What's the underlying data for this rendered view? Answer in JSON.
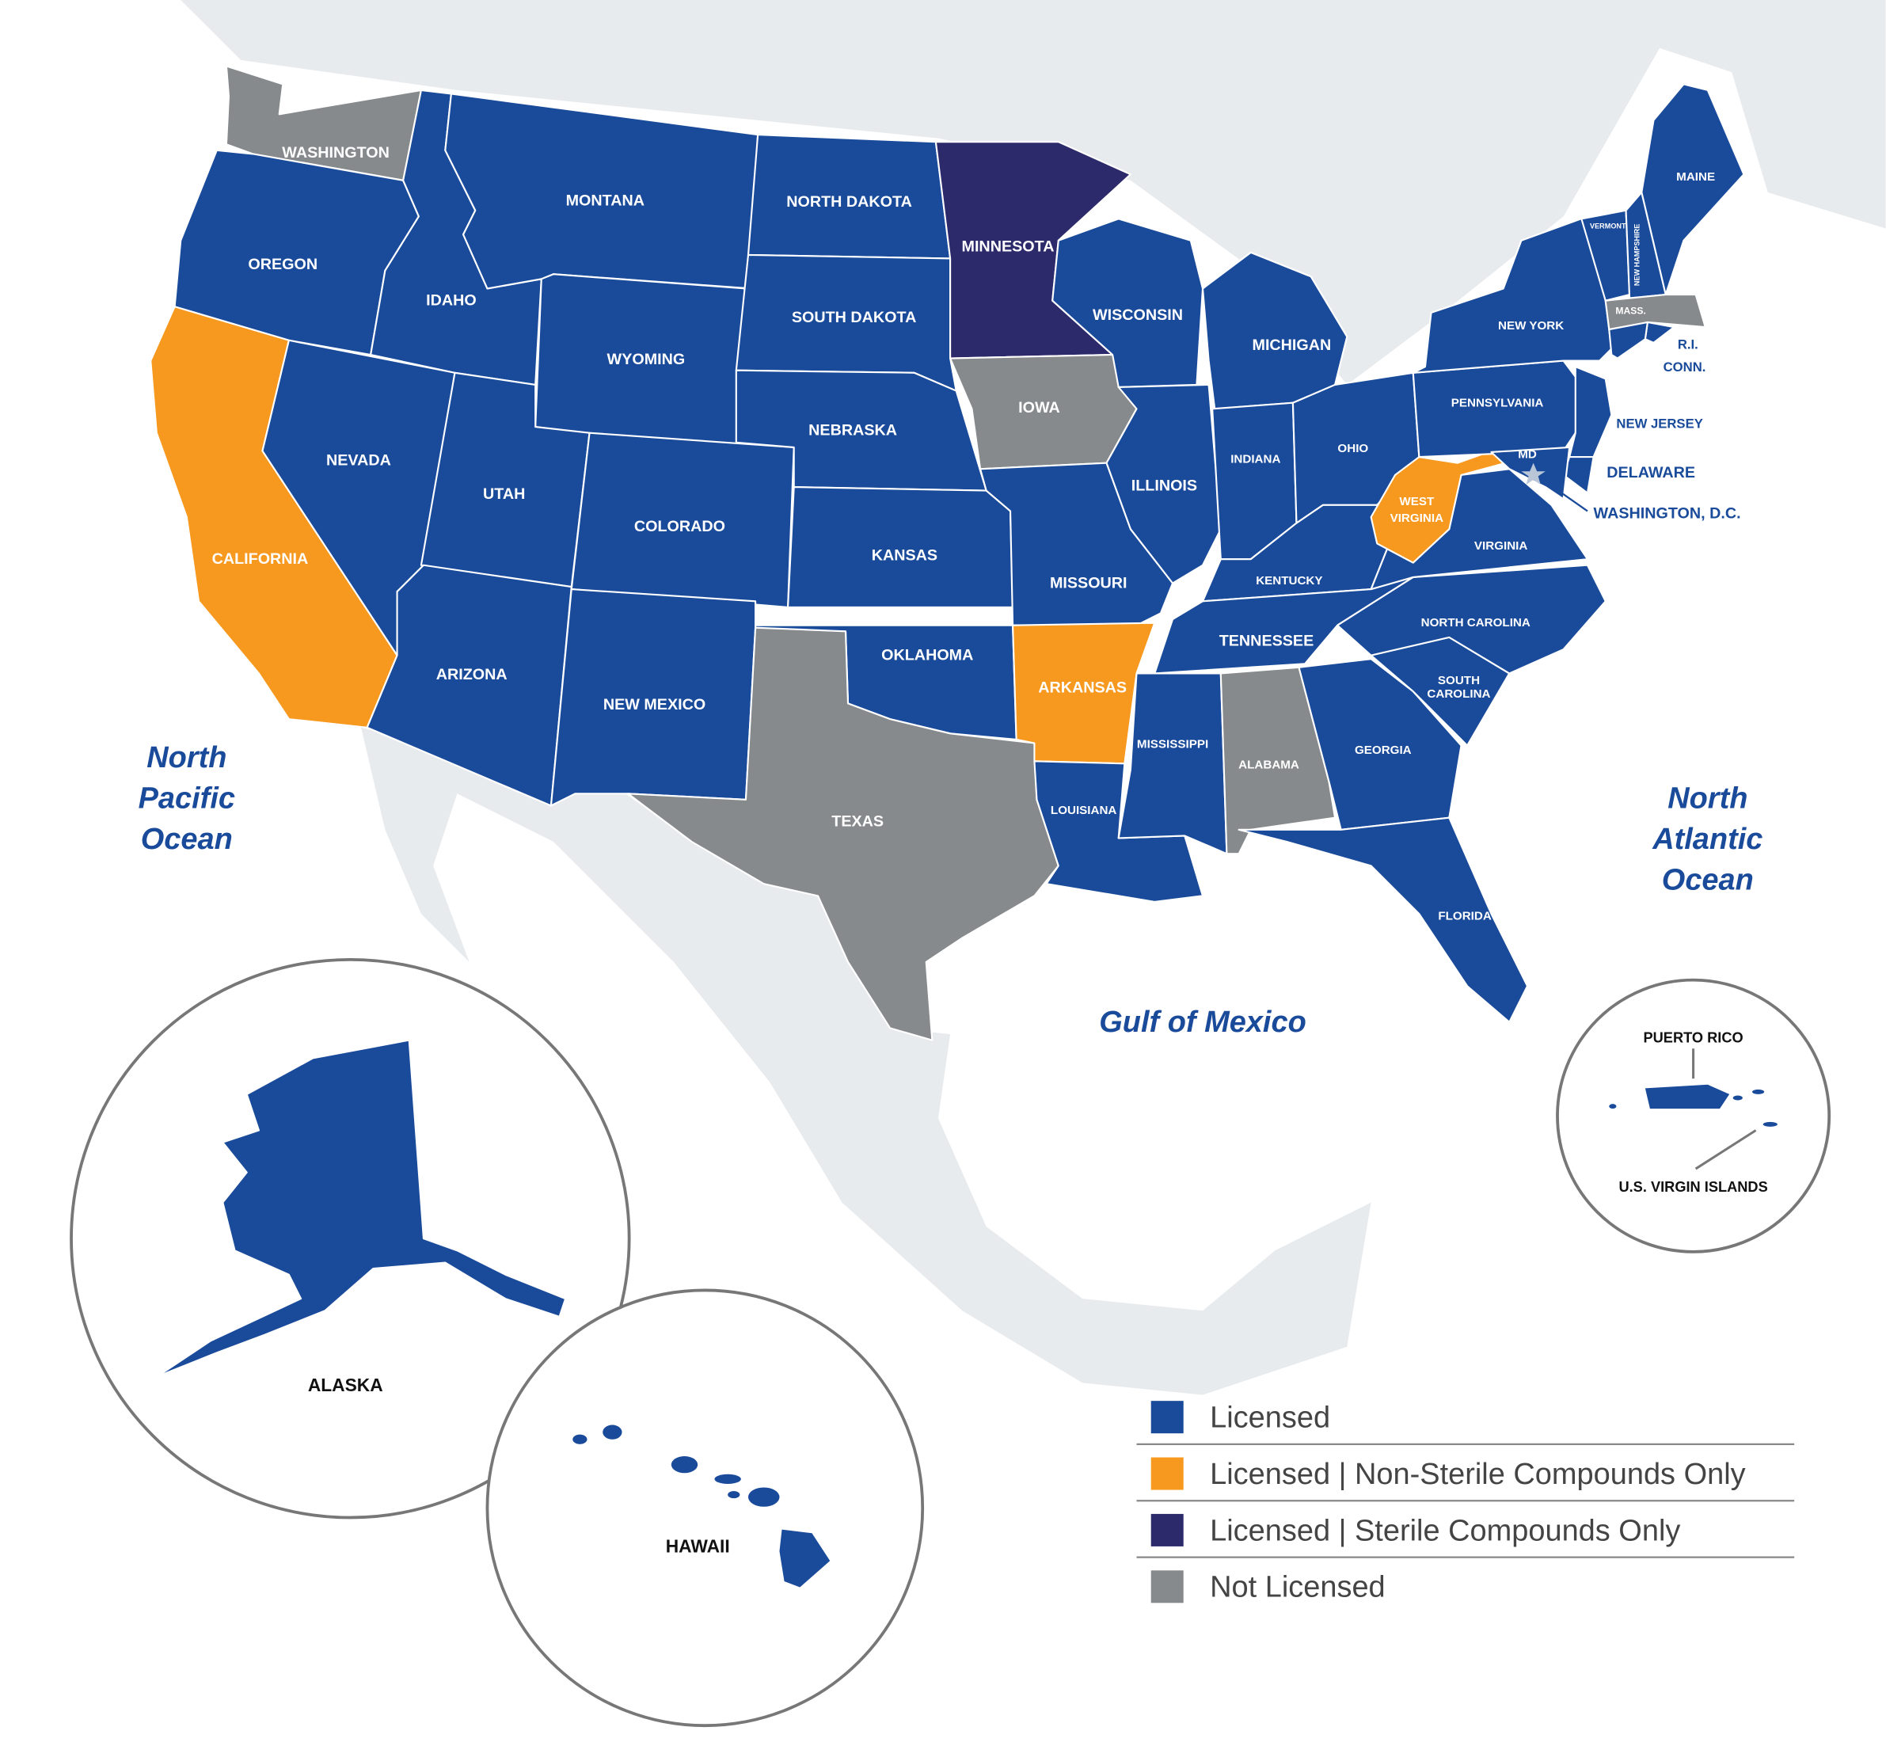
{
  "colors": {
    "licensed": "#1a4b9b",
    "non_sterile": "#f7981f",
    "sterile": "#2d2a6b",
    "not_licensed": "#868a8c"
  },
  "oceans": {
    "pacific": [
      "North",
      "Pacific",
      "Ocean"
    ],
    "atlantic": [
      "North",
      "Atlantic",
      "Ocean"
    ],
    "gulf": "Gulf of Mexico"
  },
  "states": [
    {
      "label": "WASHINGTON",
      "status": "not_licensed"
    },
    {
      "label": "OREGON",
      "status": "licensed"
    },
    {
      "label": "CALIFORNIA",
      "status": "non_sterile"
    },
    {
      "label": "NEVADA",
      "status": "licensed"
    },
    {
      "label": "IDAHO",
      "status": "licensed"
    },
    {
      "label": "MONTANA",
      "status": "licensed"
    },
    {
      "label": "WYOMING",
      "status": "licensed"
    },
    {
      "label": "UTAH",
      "status": "licensed"
    },
    {
      "label": "COLORADO",
      "status": "licensed"
    },
    {
      "label": "ARIZONA",
      "status": "licensed"
    },
    {
      "label": "NEW MEXICO",
      "status": "licensed"
    },
    {
      "label": "NORTH DAKOTA",
      "status": "licensed"
    },
    {
      "label": "SOUTH DAKOTA",
      "status": "licensed"
    },
    {
      "label": "NEBRASKA",
      "status": "licensed"
    },
    {
      "label": "KANSAS",
      "status": "licensed"
    },
    {
      "label": "OKLAHOMA",
      "status": "licensed"
    },
    {
      "label": "TEXAS",
      "status": "not_licensed"
    },
    {
      "label": "MINNESOTA",
      "status": "sterile"
    },
    {
      "label": "IOWA",
      "status": "not_licensed"
    },
    {
      "label": "MISSOURI",
      "status": "licensed"
    },
    {
      "label": "ARKANSAS",
      "status": "non_sterile"
    },
    {
      "label": "LOUISIANA",
      "status": "licensed"
    },
    {
      "label": "WISCONSIN",
      "status": "licensed"
    },
    {
      "label": "ILLINOIS",
      "status": "licensed"
    },
    {
      "label": "MICHIGAN",
      "status": "licensed"
    },
    {
      "label": "INDIANA",
      "status": "licensed"
    },
    {
      "label": "OHIO",
      "status": "licensed"
    },
    {
      "label": "KENTUCKY",
      "status": "licensed"
    },
    {
      "label": "TENNESSEE",
      "status": "licensed"
    },
    {
      "label": "MISSISSIPPI",
      "status": "licensed"
    },
    {
      "label": "ALABAMA",
      "status": "not_licensed"
    },
    {
      "label": "GEORGIA",
      "status": "licensed"
    },
    {
      "label": "FLORIDA",
      "status": "licensed"
    },
    {
      "label_lines": [
        "SOUTH",
        "CAROLINA"
      ],
      "status": "licensed"
    },
    {
      "label": "NORTH CAROLINA",
      "status": "licensed"
    },
    {
      "label": "VIRGINIA",
      "status": "licensed"
    },
    {
      "label_lines": [
        "WEST",
        "VIRGINIA"
      ],
      "status": "non_sterile"
    },
    {
      "label": "PENNSYLVANIA",
      "status": "licensed"
    },
    {
      "label": "NEW YORK",
      "status": "licensed"
    },
    {
      "label": "NEW JERSEY",
      "status": "licensed"
    },
    {
      "label": "DELAWARE",
      "status": "licensed"
    },
    {
      "label": "MD",
      "status": "licensed"
    },
    {
      "label": "WASHINGTON, D.C.",
      "status": "licensed"
    },
    {
      "label": "MAINE",
      "status": "licensed"
    },
    {
      "label": "VERMONT",
      "status": "licensed"
    },
    {
      "label": "NEW HAMPSHIRE",
      "status": "licensed"
    },
    {
      "label": "MASS.",
      "status": "not_licensed"
    },
    {
      "label": "R.I.",
      "status": "licensed"
    },
    {
      "label": "CONN.",
      "status": "licensed"
    },
    {
      "label": "ALASKA",
      "status": "licensed"
    },
    {
      "label": "HAWAII",
      "status": "licensed"
    },
    {
      "label": "PUERTO RICO",
      "status": "licensed"
    },
    {
      "label": "U.S. VIRGIN ISLANDS",
      "status": "licensed"
    }
  ],
  "legend": [
    {
      "label": "Licensed",
      "status": "licensed"
    },
    {
      "label": "Licensed | Non-Sterile Compounds Only",
      "status": "non_sterile"
    },
    {
      "label": "Licensed | Sterile Compounds Only",
      "status": "sterile"
    },
    {
      "label": "Not Licensed",
      "status": "not_licensed"
    }
  ]
}
